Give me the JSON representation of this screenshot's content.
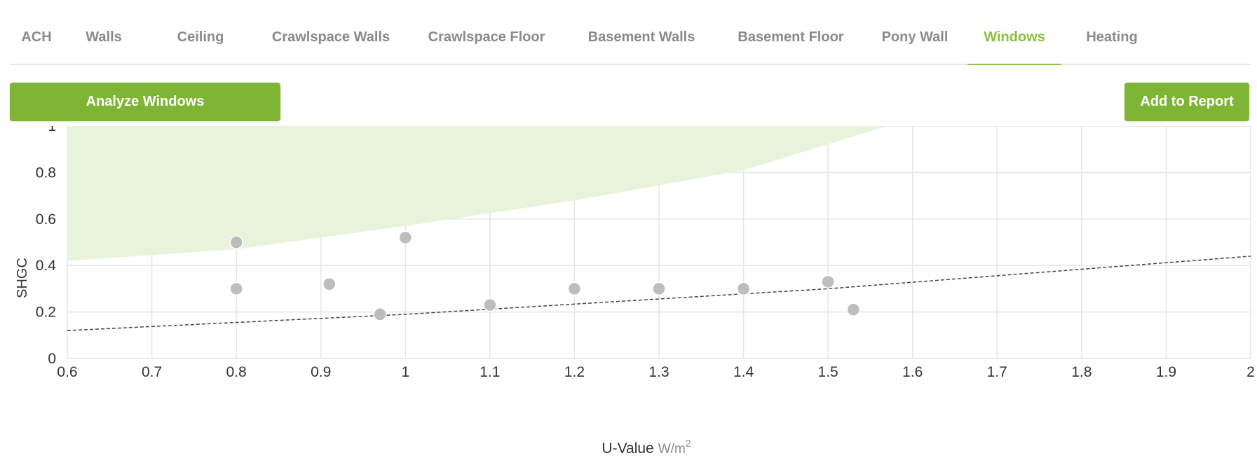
{
  "tabs": [
    {
      "label": "ACH",
      "active": false
    },
    {
      "label": "Walls",
      "active": false
    },
    {
      "label": "Ceiling",
      "active": false
    },
    {
      "label": "Crawlspace Walls",
      "active": false
    },
    {
      "label": "Crawlspace Floor",
      "active": false
    },
    {
      "label": "Basement Walls",
      "active": false
    },
    {
      "label": "Basement Floor",
      "active": false
    },
    {
      "label": "Pony Wall",
      "active": false
    },
    {
      "label": "Windows",
      "active": true
    },
    {
      "label": "Heating",
      "active": false
    }
  ],
  "actions": {
    "analyze_label": "Analyze Windows",
    "report_label": "Add to Report"
  },
  "colors": {
    "accent": "#7fb534",
    "active_tab": "#8bbf3c",
    "region_fill": "#e9f3dc",
    "point": "#bdbdbd"
  },
  "chart_data": {
    "type": "scatter",
    "xlabel": "U-Value",
    "xunit": "W/m",
    "xunit_sup": "2",
    "ylabel": "SHGC",
    "xlim": [
      0.6,
      2.0
    ],
    "ylim": [
      0,
      1
    ],
    "xticks": [
      "0.6",
      "0.7",
      "0.8",
      "0.9",
      "1",
      "1.1",
      "1.2",
      "1.3",
      "1.4",
      "1.5",
      "1.6",
      "1.7",
      "1.8",
      "1.9",
      "2"
    ],
    "yticks": [
      "0",
      "0.2",
      "0.4",
      "0.6",
      "0.8",
      "1"
    ],
    "grid": true,
    "points": [
      {
        "x": 0.8,
        "y": 0.5
      },
      {
        "x": 0.8,
        "y": 0.3
      },
      {
        "x": 0.91,
        "y": 0.32
      },
      {
        "x": 0.97,
        "y": 0.19
      },
      {
        "x": 1.0,
        "y": 0.52
      },
      {
        "x": 1.1,
        "y": 0.23
      },
      {
        "x": 1.2,
        "y": 0.3
      },
      {
        "x": 1.3,
        "y": 0.3
      },
      {
        "x": 1.4,
        "y": 0.3
      },
      {
        "x": 1.5,
        "y": 0.33
      },
      {
        "x": 1.53,
        "y": 0.21
      }
    ],
    "trend_line": [
      {
        "x": 0.6,
        "y": 0.12
      },
      {
        "x": 1.0,
        "y": 0.19
      },
      {
        "x": 1.5,
        "y": 0.3
      },
      {
        "x": 2.0,
        "y": 0.44
      }
    ],
    "region_upper": [
      {
        "x": 0.6,
        "y": 1.0
      },
      {
        "x": 1.57,
        "y": 1.0
      }
    ],
    "region_lower": [
      {
        "x": 0.6,
        "y": 0.42
      },
      {
        "x": 0.8,
        "y": 0.47
      },
      {
        "x": 1.0,
        "y": 0.57
      },
      {
        "x": 1.2,
        "y": 0.68
      },
      {
        "x": 1.4,
        "y": 0.81
      },
      {
        "x": 1.57,
        "y": 1.0
      }
    ]
  }
}
